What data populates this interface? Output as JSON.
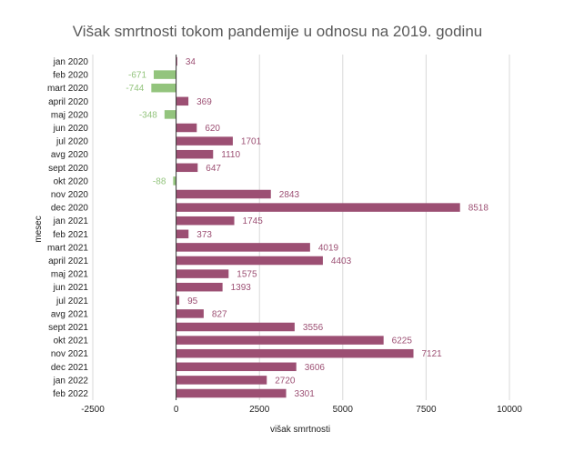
{
  "chart_data": {
    "type": "bar",
    "orientation": "horizontal",
    "title": "Višak smrtnosti tokom pandemije u odnosu na 2019. godinu",
    "xlabel": "višak smrtnosti",
    "ylabel": "mesec",
    "xlim": [
      -2500,
      10000
    ],
    "xticks": [
      -2500,
      0,
      2500,
      5000,
      7500,
      10000
    ],
    "grid": "vertical",
    "legend": "none",
    "colors": {
      "positive": "#9c4f73",
      "negative": "#93c47d",
      "grid": "#d9d9d9",
      "axis": "#333333"
    },
    "categories": [
      "jan 2020",
      "feb 2020",
      "mart 2020",
      "april 2020",
      "maj 2020",
      "jun 2020",
      "jul 2020",
      "avg 2020",
      "sept 2020",
      "okt 2020",
      "nov 2020",
      "dec 2020",
      "jan 2021",
      "feb 2021",
      "mart 2021",
      "april 2021",
      "maj 2021",
      "jun 2021",
      "jul 2021",
      "avg 2021",
      "sept 2021",
      "okt 2021",
      "nov 2021",
      "dec 2021",
      "jan 2022",
      "feb 2022"
    ],
    "values": [
      34,
      -671,
      -744,
      369,
      -348,
      620,
      1701,
      1110,
      647,
      -88,
      2843,
      8518,
      1745,
      373,
      4019,
      4403,
      1575,
      1393,
      95,
      827,
      3556,
      6225,
      7121,
      3606,
      2720,
      3301
    ]
  }
}
